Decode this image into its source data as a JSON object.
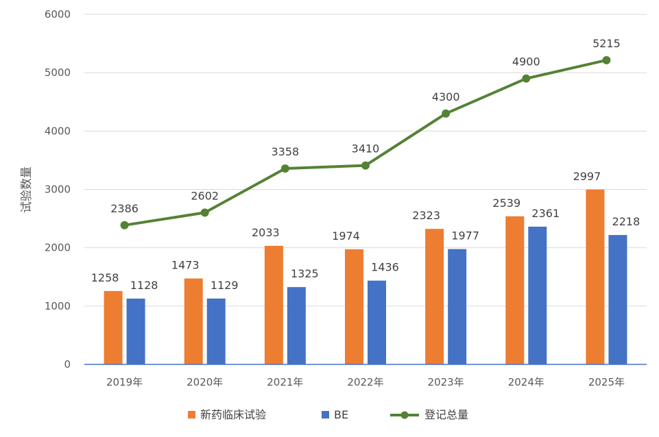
{
  "chart_data": {
    "type": "bar",
    "categories": [
      "2019年",
      "2020年",
      "2021年",
      "2022年",
      "2023年",
      "2024年",
      "2025年"
    ],
    "series": [
      {
        "name": "新药临床试验",
        "type": "bar",
        "color": "#ED7D31",
        "values": [
          1258,
          1473,
          2033,
          1974,
          2323,
          2539,
          2997
        ]
      },
      {
        "name": "BE",
        "type": "bar",
        "color": "#4472C4",
        "values": [
          1128,
          1129,
          1325,
          1436,
          1977,
          2361,
          2218
        ]
      },
      {
        "name": "登记总量",
        "type": "line",
        "color": "#548235",
        "values": [
          2386,
          2602,
          3358,
          3410,
          4300,
          4900,
          5215
        ]
      }
    ],
    "title": "",
    "xlabel": "",
    "ylabel": "试验数量",
    "ylim": [
      0,
      6000
    ],
    "yticks": [
      0,
      1000,
      2000,
      3000,
      4000,
      5000,
      6000
    ],
    "grid": true,
    "legend": "bottom"
  }
}
